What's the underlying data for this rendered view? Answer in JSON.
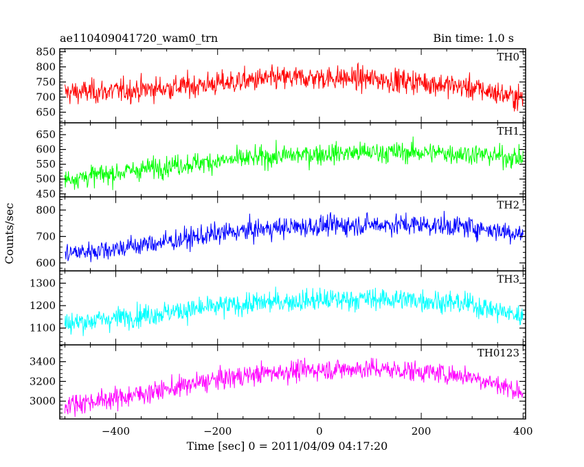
{
  "chart_data": {
    "type": "line",
    "title": "ae110409041720_wam0_trn",
    "subtitle": "Bin time: 1.0 s",
    "xlabel": "Time [sec] 0 = 2011/04/09 04:17:20",
    "ylabel": "Counts/sec",
    "xlim": [
      -510,
      405
    ],
    "x_ticks": [
      -400,
      -200,
      0,
      200,
      400
    ],
    "x_tick_labels": [
      "−400",
      "−200",
      "0",
      "200",
      "400"
    ],
    "bin_time": 1.0,
    "x_range": [
      -500,
      400
    ],
    "grid": false,
    "legend": "none",
    "panels": [
      {
        "name": "TH0",
        "color": "#ff0000",
        "ylim": [
          615,
          860
        ],
        "y_ticks": [
          650,
          700,
          750,
          800,
          850
        ],
        "trend_x": [
          -500,
          -400,
          -300,
          -200,
          -100,
          0,
          100,
          200,
          300,
          400
        ],
        "trend_y": [
          715,
          720,
          730,
          745,
          760,
          765,
          760,
          750,
          730,
          695
        ],
        "noise_sd": 28
      },
      {
        "name": "TH1",
        "color": "#00ff00",
        "ylim": [
          440,
          690
        ],
        "y_ticks": [
          450,
          500,
          550,
          600,
          650
        ],
        "trend_x": [
          -500,
          -400,
          -300,
          -200,
          -100,
          0,
          100,
          200,
          300,
          400
        ],
        "trend_y": [
          500,
          520,
          545,
          560,
          575,
          585,
          590,
          590,
          585,
          570
        ],
        "noise_sd": 25
      },
      {
        "name": "TH2",
        "color": "#0000ff",
        "ylim": [
          570,
          850
        ],
        "y_ticks": [
          600,
          700,
          800
        ],
        "trend_x": [
          -500,
          -400,
          -300,
          -200,
          -100,
          0,
          100,
          200,
          300,
          400
        ],
        "trend_y": [
          635,
          655,
          680,
          710,
          730,
          740,
          745,
          745,
          735,
          710
        ],
        "noise_sd": 28
      },
      {
        "name": "TH3",
        "color": "#00ffff",
        "ylim": [
          1025,
          1355
        ],
        "y_ticks": [
          1100,
          1200,
          1300
        ],
        "trend_x": [
          -500,
          -400,
          -300,
          -200,
          -100,
          0,
          100,
          200,
          300,
          400
        ],
        "trend_y": [
          1120,
          1145,
          1170,
          1195,
          1215,
          1225,
          1230,
          1225,
          1205,
          1150
        ],
        "noise_sd": 35
      },
      {
        "name": "TH0123",
        "color": "#ff00ff",
        "ylim": [
          2820,
          3570
        ],
        "y_ticks": [
          3000,
          3200,
          3400
        ],
        "trend_x": [
          -500,
          -400,
          -300,
          -200,
          -100,
          0,
          100,
          200,
          300,
          400
        ],
        "trend_y": [
          2965,
          3030,
          3120,
          3220,
          3290,
          3320,
          3330,
          3300,
          3250,
          3090
        ],
        "noise_sd": 75
      }
    ]
  }
}
